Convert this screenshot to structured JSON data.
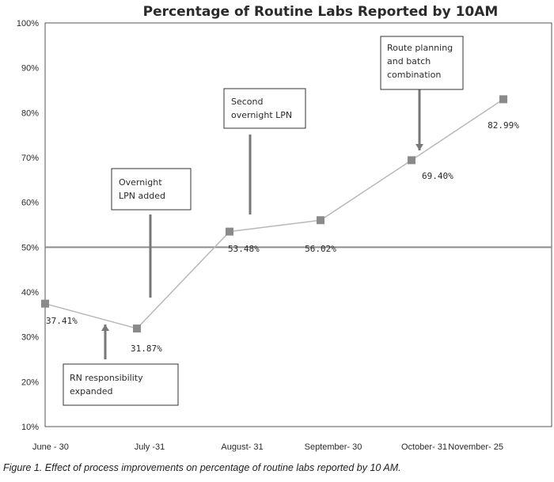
{
  "chart_data": {
    "type": "line",
    "title": "Percentage of Routine Labs Reported by 10AM",
    "xlabel": "",
    "ylabel": "",
    "categories": [
      "June - 30",
      "July -31",
      "August- 31",
      "September- 30",
      "October- 31",
      "November- 25"
    ],
    "series": [
      {
        "values": [
          37.41,
          31.87,
          53.48,
          56.02,
          69.4,
          82.99
        ],
        "data_labels": [
          "37.41%",
          "31.87%",
          "53.48%",
          "56.02%",
          "69.40%",
          "82.99%"
        ]
      }
    ],
    "ylim": [
      10,
      100
    ],
    "yticks": [
      10,
      20,
      30,
      40,
      50,
      60,
      70,
      80,
      90,
      100
    ],
    "ytick_labels": [
      "10%",
      "20%",
      "30%",
      "40%",
      "50%",
      "60%",
      "70%",
      "80%",
      "90%",
      "100%"
    ],
    "reference_line": 50,
    "grid": false,
    "annotations": [
      {
        "lines": [
          "RN responsibility",
          "expanded"
        ],
        "target_index": 0
      },
      {
        "lines": [
          "Overnight",
          "LPN added"
        ],
        "target_index": 1
      },
      {
        "lines": [
          "Second",
          "overnight LPN"
        ],
        "target_index": 2
      },
      {
        "lines": [
          "Route planning",
          "and batch",
          "combination"
        ],
        "target_index": 4
      }
    ],
    "colors": {
      "line": "#b8b8b8",
      "marker": "#8a8a8a",
      "reference": "#8c8c8c",
      "arrow": "#777777"
    }
  },
  "caption": "Figure 1. Effect of process improvements on percentage of routine labs reported by 10 AM."
}
